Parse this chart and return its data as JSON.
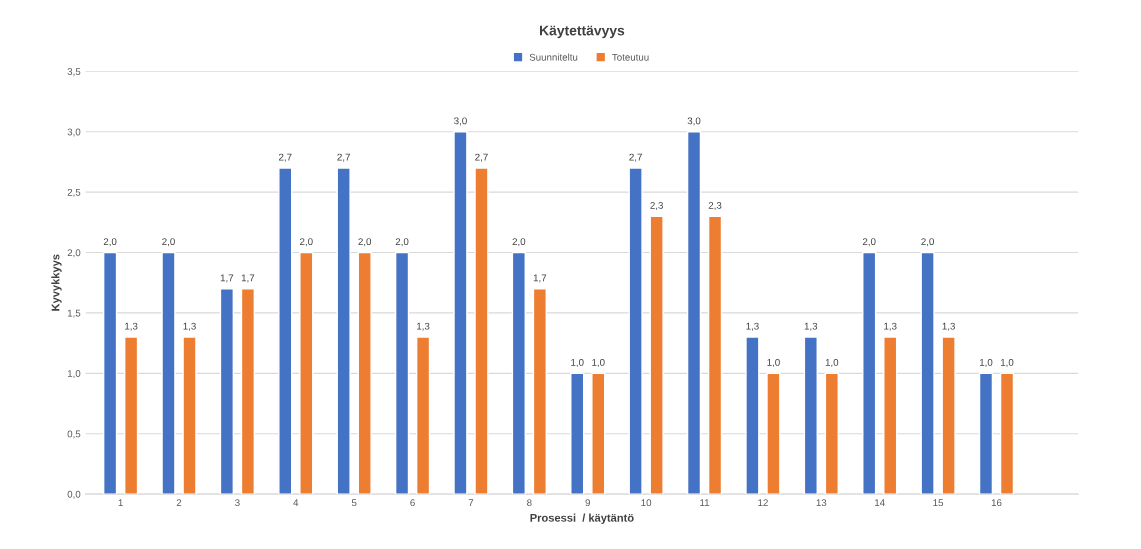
{
  "chart_data": {
    "type": "bar",
    "title": "Käytettävyys",
    "xlabel": "Prosessi  / käytäntö",
    "ylabel": "Kyvykkyys",
    "categories": [
      "1",
      "2",
      "3",
      "4",
      "5",
      "6",
      "7",
      "8",
      "9",
      "10",
      "11",
      "12",
      "13",
      "14",
      "15",
      "16"
    ],
    "series": [
      {
        "name": "Suunniteltu",
        "color": "#4472c4",
        "values": [
          2.0,
          2.0,
          1.7,
          2.7,
          2.7,
          2.0,
          3.0,
          2.0,
          1.0,
          2.7,
          3.0,
          1.3,
          1.3,
          2.0,
          2.0,
          1.0
        ],
        "value_labels": [
          "2,0",
          "2,0",
          "1,7",
          "2,7",
          "2,7",
          "2,0",
          "3,0",
          "2,0",
          "1,0",
          "2,7",
          "3,0",
          "1,3",
          "1,3",
          "2,0",
          "2,0",
          "1,0"
        ]
      },
      {
        "name": "Toteutuu",
        "color": "#ed7d31",
        "values": [
          1.3,
          1.3,
          1.7,
          2.0,
          2.0,
          1.3,
          2.7,
          1.7,
          1.0,
          2.3,
          2.3,
          1.0,
          1.0,
          1.3,
          1.3,
          1.0
        ],
        "value_labels": [
          "1,3",
          "1,3",
          "1,7",
          "2,0",
          "2,0",
          "1,3",
          "2,7",
          "1,7",
          "1,0",
          "2,3",
          "2,3",
          "1,0",
          "1,0",
          "1,3",
          "1,3",
          "1,0"
        ]
      }
    ],
    "ylim": [
      0,
      3.5
    ],
    "yticks": [
      {
        "value": 0,
        "label": "0,0"
      },
      {
        "value": 0.5,
        "label": "0,5"
      },
      {
        "value": 1,
        "label": "1,0"
      },
      {
        "value": 1.5,
        "label": "1,5"
      },
      {
        "value": 2,
        "label": "2,0"
      },
      {
        "value": 2.5,
        "label": "2,5"
      },
      {
        "value": 3,
        "label": "3,0"
      },
      {
        "value": 3.5,
        "label": "3,5"
      }
    ],
    "grid": "y",
    "legend": "top"
  }
}
